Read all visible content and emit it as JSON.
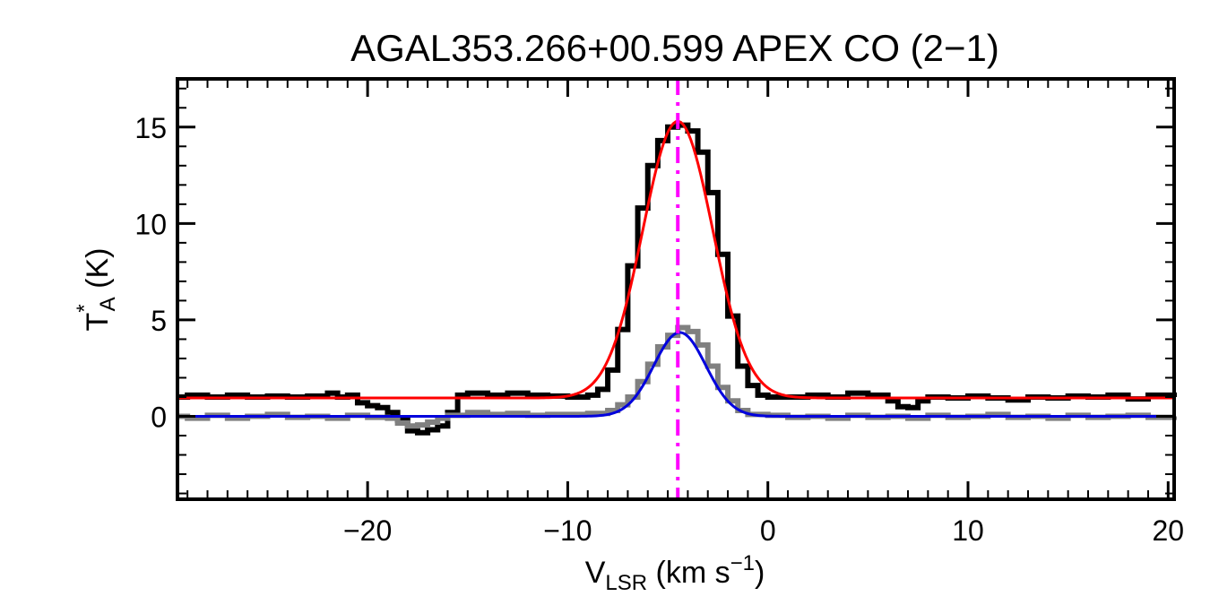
{
  "chart_data": {
    "type": "line",
    "title": "AGAL353.266+00.599  APEX CO (2−1)",
    "xlabel": {
      "main": "V",
      "sub": "LSR",
      "unit_prefix": " (km s",
      "unit_sup": "−1",
      "unit_suffix": ")"
    },
    "ylabel": {
      "main": "T",
      "sup": "*",
      "sub": "A",
      "unit": " (K)"
    },
    "xlim": [
      -29.5,
      20.3
    ],
    "ylim": [
      -4.3,
      17.5
    ],
    "x_ticks": [
      -20,
      -10,
      0,
      10,
      20
    ],
    "x_tick_labels": [
      "−20",
      "−10",
      "0",
      "10",
      "20"
    ],
    "y_ticks": [
      0,
      5,
      10,
      15
    ],
    "y_tick_labels": [
      "0",
      "5",
      "10",
      "15"
    ],
    "grid": false,
    "legend": "none",
    "velocity_marker": -4.5,
    "series": [
      {
        "kind": "step",
        "color": "#000000",
        "points": [
          [
            -29.5,
            1.0
          ],
          [
            -29.0,
            1.1
          ],
          [
            -28.0,
            1.0
          ],
          [
            -27.0,
            1.1
          ],
          [
            -26.0,
            1.0
          ],
          [
            -25.0,
            1.05
          ],
          [
            -24.0,
            1.0
          ],
          [
            -23.0,
            1.05
          ],
          [
            -22.0,
            1.2
          ],
          [
            -21.5,
            1.0
          ],
          [
            -21.0,
            1.1
          ],
          [
            -20.5,
            0.7
          ],
          [
            -20.0,
            0.55
          ],
          [
            -19.5,
            0.45
          ],
          [
            -19.0,
            0.2
          ],
          [
            -18.5,
            -0.2
          ],
          [
            -18.0,
            -0.75
          ],
          [
            -17.5,
            -0.85
          ],
          [
            -17.0,
            -0.7
          ],
          [
            -16.5,
            -0.5
          ],
          [
            -16.0,
            0.2
          ],
          [
            -15.5,
            1.1
          ],
          [
            -15.0,
            1.2
          ],
          [
            -14.0,
            1.1
          ],
          [
            -13.0,
            1.2
          ],
          [
            -12.0,
            1.1
          ],
          [
            -11.0,
            1.05
          ],
          [
            -10.0,
            1.0
          ],
          [
            -9.0,
            1.1
          ],
          [
            -8.5,
            1.4
          ],
          [
            -8.0,
            2.4
          ],
          [
            -7.5,
            4.5
          ],
          [
            -7.0,
            7.8
          ],
          [
            -6.5,
            10.8
          ],
          [
            -6.0,
            13.0
          ],
          [
            -5.5,
            14.3
          ],
          [
            -5.0,
            15.0
          ],
          [
            -4.5,
            15.1
          ],
          [
            -4.0,
            14.8
          ],
          [
            -3.5,
            13.7
          ],
          [
            -3.0,
            11.6
          ],
          [
            -2.5,
            8.4
          ],
          [
            -2.0,
            5.2
          ],
          [
            -1.5,
            2.6
          ],
          [
            -1.0,
            1.6
          ],
          [
            -0.5,
            1.1
          ],
          [
            0.0,
            1.0
          ],
          [
            1.0,
            1.0
          ],
          [
            2.0,
            1.1
          ],
          [
            3.0,
            1.0
          ],
          [
            4.0,
            1.2
          ],
          [
            5.0,
            1.1
          ],
          [
            6.0,
            0.8
          ],
          [
            6.5,
            0.5
          ],
          [
            7.0,
            0.45
          ],
          [
            7.5,
            0.8
          ],
          [
            8.0,
            1.0
          ],
          [
            9.0,
            0.95
          ],
          [
            10.0,
            1.05
          ],
          [
            11.0,
            0.95
          ],
          [
            12.0,
            0.85
          ],
          [
            13.0,
            1.0
          ],
          [
            14.0,
            0.95
          ],
          [
            15.0,
            1.05
          ],
          [
            16.0,
            1.0
          ],
          [
            17.0,
            1.1
          ],
          [
            18.0,
            0.9
          ],
          [
            19.0,
            1.1
          ],
          [
            20.3,
            1.0
          ]
        ]
      },
      {
        "kind": "step",
        "color": "#808080",
        "points": [
          [
            -29.5,
            0.0
          ],
          [
            -29.0,
            -0.1
          ],
          [
            -28.0,
            0.05
          ],
          [
            -27.0,
            -0.1
          ],
          [
            -26.0,
            0.0
          ],
          [
            -25.0,
            0.1
          ],
          [
            -24.0,
            -0.05
          ],
          [
            -23.0,
            0.0
          ],
          [
            -22.0,
            -0.1
          ],
          [
            -21.0,
            0.05
          ],
          [
            -20.0,
            -0.05
          ],
          [
            -19.0,
            -0.1
          ],
          [
            -18.5,
            -0.35
          ],
          [
            -18.0,
            -0.5
          ],
          [
            -17.5,
            -0.45
          ],
          [
            -17.0,
            -0.3
          ],
          [
            -16.5,
            -0.1
          ],
          [
            -16.0,
            0.05
          ],
          [
            -15.0,
            0.2
          ],
          [
            -14.0,
            0.1
          ],
          [
            -13.0,
            0.15
          ],
          [
            -12.0,
            0.05
          ],
          [
            -11.0,
            0.1
          ],
          [
            -10.0,
            0.1
          ],
          [
            -9.0,
            0.15
          ],
          [
            -8.0,
            0.3
          ],
          [
            -7.5,
            0.6
          ],
          [
            -7.0,
            1.0
          ],
          [
            -6.5,
            1.8
          ],
          [
            -6.0,
            2.7
          ],
          [
            -5.5,
            3.6
          ],
          [
            -5.0,
            4.2
          ],
          [
            -4.5,
            4.6
          ],
          [
            -4.0,
            4.4
          ],
          [
            -3.5,
            3.7
          ],
          [
            -3.0,
            2.6
          ],
          [
            -2.5,
            1.5
          ],
          [
            -2.0,
            0.8
          ],
          [
            -1.5,
            0.3
          ],
          [
            -1.0,
            0.1
          ],
          [
            0.0,
            0.05
          ],
          [
            1.0,
            -0.05
          ],
          [
            2.0,
            0.0
          ],
          [
            3.0,
            -0.1
          ],
          [
            4.0,
            0.05
          ],
          [
            5.0,
            -0.05
          ],
          [
            6.0,
            0.0
          ],
          [
            7.0,
            -0.1
          ],
          [
            8.0,
            0.05
          ],
          [
            9.0,
            -0.05
          ],
          [
            10.0,
            0.0
          ],
          [
            11.0,
            0.1
          ],
          [
            12.0,
            -0.05
          ],
          [
            13.0,
            0.0
          ],
          [
            14.0,
            -0.1
          ],
          [
            15.0,
            0.05
          ],
          [
            16.0,
            -0.05
          ],
          [
            17.0,
            0.0
          ],
          [
            18.0,
            0.05
          ],
          [
            19.0,
            -0.05
          ],
          [
            20.3,
            0.0
          ]
        ]
      },
      {
        "kind": "gaussian",
        "color": "#ff0000",
        "baseline": 0.95,
        "amplitude": 14.35,
        "center": -4.5,
        "sigma": 1.75
      },
      {
        "kind": "gaussian",
        "color": "#0000dd",
        "baseline": 0.0,
        "amplitude": 4.35,
        "center": -4.4,
        "sigma": 1.3
      }
    ],
    "colors": {
      "marker": "#ff00ff",
      "axis": "#000000"
    }
  }
}
